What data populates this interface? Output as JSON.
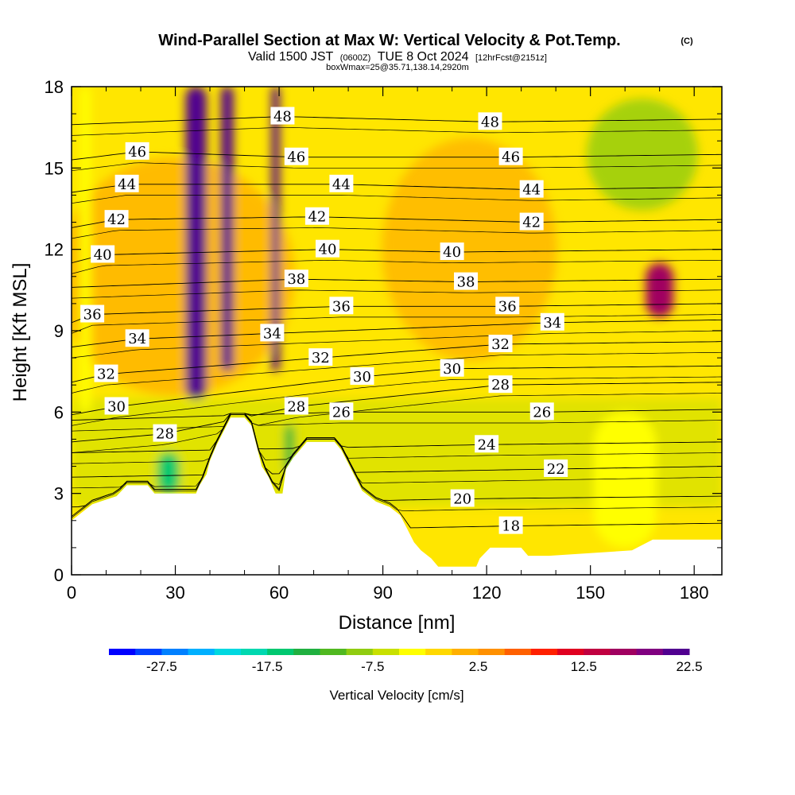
{
  "header": {
    "title": "Wind-Parallel Section at Max W: Vertical Velocity & Pot.Temp.",
    "copyright": "(C)",
    "valid_line": {
      "prefix": "Valid 1500 JST",
      "utc": "(0600Z)",
      "date": "TUE 8 Oct 2024",
      "forecast": "[12hrFcst@2151z]"
    },
    "box_line": "boxWmax=25@35.71,138.14,2920m"
  },
  "chart_data": {
    "type": "heatmap",
    "title": "Wind-Parallel Section at Max W: Vertical Velocity & Pot.Temp.",
    "xlabel": "Distance [nm]",
    "ylabel": "Height [Kft MSL]",
    "xlim": [
      0,
      188
    ],
    "ylim": [
      0,
      18
    ],
    "x_ticks": [
      "0",
      "30",
      "60",
      "90",
      "120",
      "150",
      "180"
    ],
    "y_ticks": [
      "0",
      "3",
      "6",
      "9",
      "12",
      "15",
      "18"
    ],
    "colorbar": {
      "label": "Vertical Velocity [cm/s]",
      "tick_labels": [
        "-27.5",
        "-17.5",
        "-7.5",
        "2.5",
        "12.5",
        "22.5"
      ],
      "colors": [
        "#0000ff",
        "#0040ff",
        "#0080ff",
        "#00b0ff",
        "#00d8e0",
        "#00d8b0",
        "#00c870",
        "#20b040",
        "#50b820",
        "#90cc10",
        "#c8e000",
        "#ffff00",
        "#ffd800",
        "#ffb000",
        "#ff9000",
        "#ff6000",
        "#ff2000",
        "#e00020",
        "#c00040",
        "#a00060",
        "#800080",
        "#500090"
      ]
    },
    "terrain_height_kft": [
      {
        "x": 0,
        "h": 2.0
      },
      {
        "x": 3,
        "h": 2.3
      },
      {
        "x": 6,
        "h": 2.6
      },
      {
        "x": 13,
        "h": 2.9
      },
      {
        "x": 16,
        "h": 3.3
      },
      {
        "x": 22,
        "h": 3.3
      },
      {
        "x": 24,
        "h": 3.0
      },
      {
        "x": 36,
        "h": 3.0
      },
      {
        "x": 37,
        "h": 3.3
      },
      {
        "x": 39,
        "h": 3.7
      },
      {
        "x": 40,
        "h": 4.2
      },
      {
        "x": 42,
        "h": 4.8
      },
      {
        "x": 44,
        "h": 5.3
      },
      {
        "x": 46,
        "h": 5.8
      },
      {
        "x": 50,
        "h": 5.8
      },
      {
        "x": 52,
        "h": 5.5
      },
      {
        "x": 55,
        "h": 4.0
      },
      {
        "x": 57,
        "h": 3.6
      },
      {
        "x": 59,
        "h": 3.0
      },
      {
        "x": 61,
        "h": 3.0
      },
      {
        "x": 62,
        "h": 3.9
      },
      {
        "x": 64,
        "h": 4.3
      },
      {
        "x": 68,
        "h": 4.9
      },
      {
        "x": 76,
        "h": 4.9
      },
      {
        "x": 78,
        "h": 4.6
      },
      {
        "x": 80,
        "h": 4.1
      },
      {
        "x": 82,
        "h": 3.6
      },
      {
        "x": 84,
        "h": 3.1
      },
      {
        "x": 88,
        "h": 2.7
      },
      {
        "x": 92,
        "h": 2.5
      },
      {
        "x": 95,
        "h": 2.2
      },
      {
        "x": 97,
        "h": 1.7
      },
      {
        "x": 99,
        "h": 1.2
      },
      {
        "x": 101,
        "h": 0.9
      },
      {
        "x": 104,
        "h": 0.6
      },
      {
        "x": 106,
        "h": 0.3
      },
      {
        "x": 117,
        "h": 0.3
      },
      {
        "x": 118,
        "h": 0.6
      },
      {
        "x": 121,
        "h": 1.0
      },
      {
        "x": 130,
        "h": 1.0
      },
      {
        "x": 132,
        "h": 0.7
      },
      {
        "x": 138,
        "h": 0.7
      },
      {
        "x": 162,
        "h": 0.9
      },
      {
        "x": 168,
        "h": 1.3
      },
      {
        "x": 188,
        "h": 1.3
      }
    ],
    "vertical_velocity_features": [
      {
        "x_center": 36,
        "x_width": 6,
        "y_bottom": 6.5,
        "y_top": 18,
        "w_cms": 20
      },
      {
        "x_center": 45,
        "x_width": 3.5,
        "y_bottom": 7.5,
        "y_top": 18,
        "w_cms": 22
      },
      {
        "x_center": 59,
        "x_width": 2.2,
        "y_bottom": 7.5,
        "y_top": 18,
        "w_cms": 25
      },
      {
        "x_center": 28,
        "x_width": 6,
        "y_bottom": 3.0,
        "y_top": 4.5,
        "w_cms": -17.5
      },
      {
        "x_center": 63,
        "x_width": 2.5,
        "y_bottom": 3.8,
        "y_top": 5.5,
        "w_cms": -15
      },
      {
        "x_center": 170,
        "x_width": 8,
        "y_bottom": 9.5,
        "y_top": 11.5,
        "w_cms": 15
      },
      {
        "x_center": 160,
        "x_width": 18,
        "y_bottom": 1,
        "y_top": 6,
        "w_cms": -5
      },
      {
        "x_center": 4,
        "x_width": 3,
        "y_bottom": 6,
        "y_top": 18,
        "w_cms": -5
      }
    ],
    "theta_contour_labels": [
      {
        "value": "48",
        "x": 61,
        "y": 16.9
      },
      {
        "value": "48",
        "x": 121,
        "y": 16.7
      },
      {
        "value": "46",
        "x": 19,
        "y": 15.6
      },
      {
        "value": "46",
        "x": 65,
        "y": 15.4
      },
      {
        "value": "46",
        "x": 127,
        "y": 15.4
      },
      {
        "value": "44",
        "x": 16,
        "y": 14.4
      },
      {
        "value": "44",
        "x": 78,
        "y": 14.4
      },
      {
        "value": "44",
        "x": 133,
        "y": 14.2
      },
      {
        "value": "42",
        "x": 13,
        "y": 13.1
      },
      {
        "value": "42",
        "x": 71,
        "y": 13.2
      },
      {
        "value": "42",
        "x": 133,
        "y": 13.0
      },
      {
        "value": "40",
        "x": 9,
        "y": 11.8
      },
      {
        "value": "40",
        "x": 74,
        "y": 12.0
      },
      {
        "value": "40",
        "x": 110,
        "y": 11.9
      },
      {
        "value": "38",
        "x": 65,
        "y": 10.9
      },
      {
        "value": "38",
        "x": 114,
        "y": 10.8
      },
      {
        "value": "36",
        "x": 6,
        "y": 9.6
      },
      {
        "value": "36",
        "x": 78,
        "y": 9.9
      },
      {
        "value": "36",
        "x": 126,
        "y": 9.9
      },
      {
        "value": "34",
        "x": 19,
        "y": 8.7
      },
      {
        "value": "34",
        "x": 58,
        "y": 8.9
      },
      {
        "value": "34",
        "x": 139,
        "y": 9.3
      },
      {
        "value": "32",
        "x": 10,
        "y": 7.4
      },
      {
        "value": "32",
        "x": 72,
        "y": 8.0
      },
      {
        "value": "32",
        "x": 124,
        "y": 8.5
      },
      {
        "value": "30",
        "x": 13,
        "y": 6.2
      },
      {
        "value": "30",
        "x": 84,
        "y": 7.3
      },
      {
        "value": "30",
        "x": 110,
        "y": 7.6
      },
      {
        "value": "28",
        "x": 27,
        "y": 5.2
      },
      {
        "value": "28",
        "x": 65,
        "y": 6.2
      },
      {
        "value": "28",
        "x": 124,
        "y": 7.0
      },
      {
        "value": "26",
        "x": 78,
        "y": 6.0
      },
      {
        "value": "26",
        "x": 136,
        "y": 6.0
      },
      {
        "value": "24",
        "x": 120,
        "y": 4.8
      },
      {
        "value": "22",
        "x": 140,
        "y": 3.9
      },
      {
        "value": "20",
        "x": 113,
        "y": 2.8
      },
      {
        "value": "18",
        "x": 127,
        "y": 1.8
      }
    ],
    "grid": false,
    "legend": "colorbar-bottom"
  }
}
